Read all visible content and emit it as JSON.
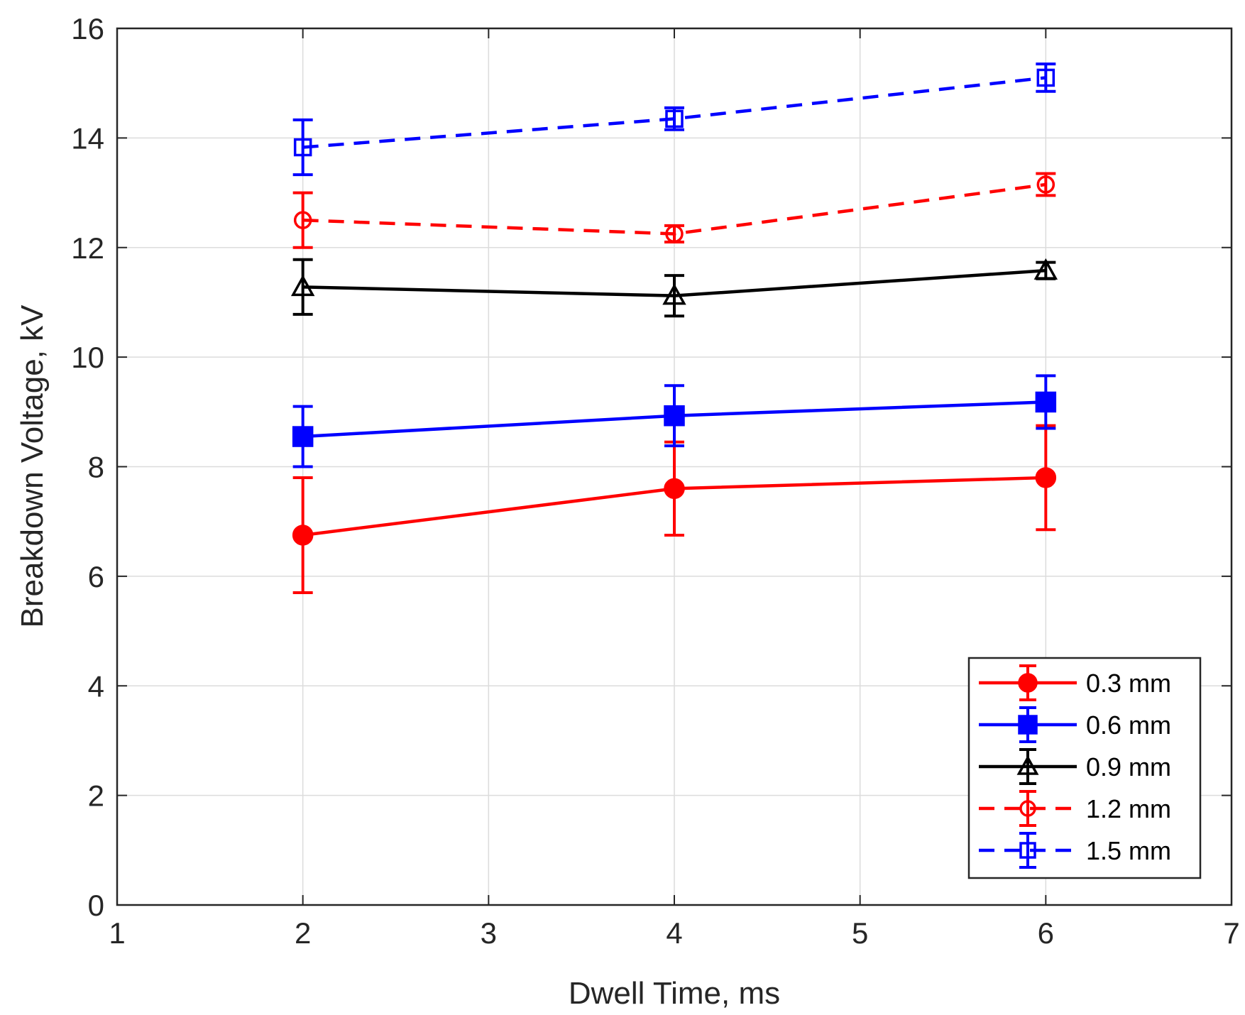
{
  "chart_data": {
    "type": "line",
    "title": "",
    "xlabel": "Dwell Time, ms",
    "ylabel": "Breakdown Voltage, kV",
    "xlim": [
      1,
      7
    ],
    "ylim": [
      0,
      16
    ],
    "xticks": [
      "1",
      "2",
      "3",
      "4",
      "5",
      "6",
      "7"
    ],
    "yticks": [
      "0",
      "2",
      "4",
      "6",
      "8",
      "10",
      "12",
      "14",
      "16"
    ],
    "grid": true,
    "legend_position": "bottom-right",
    "x": [
      2,
      4,
      6
    ],
    "series": [
      {
        "name": "0.3 mm",
        "values": [
          6.75,
          7.6,
          7.8
        ],
        "error": [
          1.05,
          0.85,
          0.95
        ],
        "color": "#ff0000",
        "linestyle": "solid",
        "marker": "circle",
        "filled": true
      },
      {
        "name": "0.6 mm",
        "values": [
          8.55,
          8.93,
          9.18
        ],
        "error": [
          0.55,
          0.55,
          0.48
        ],
        "color": "#0000ff",
        "linestyle": "solid",
        "marker": "square",
        "filled": true
      },
      {
        "name": "0.9 mm",
        "values": [
          11.28,
          11.12,
          11.58
        ],
        "error": [
          0.5,
          0.37,
          0.15
        ],
        "color": "#000000",
        "linestyle": "solid",
        "marker": "triangle",
        "filled": false
      },
      {
        "name": "1.2 mm",
        "values": [
          12.5,
          12.25,
          13.15
        ],
        "error": [
          0.5,
          0.15,
          0.2
        ],
        "color": "#ff0000",
        "linestyle": "dashed",
        "marker": "circle",
        "filled": false
      },
      {
        "name": "1.5 mm",
        "values": [
          13.83,
          14.35,
          15.1
        ],
        "error": [
          0.5,
          0.2,
          0.25
        ],
        "color": "#0000ff",
        "linestyle": "dashed",
        "marker": "square",
        "filled": false
      }
    ]
  }
}
